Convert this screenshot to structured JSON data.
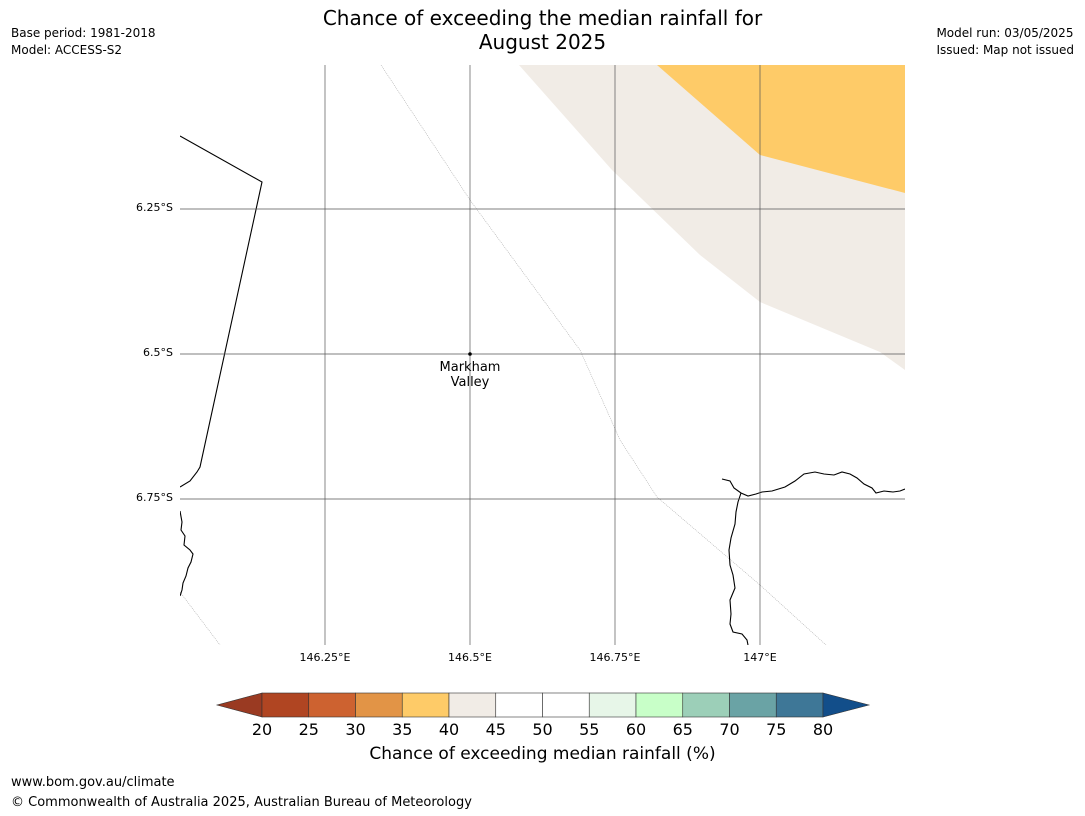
{
  "header": {
    "base_period": "Base period: 1981-2018",
    "model": "Model: ACCESS-S2",
    "model_run": "Model run: 03/05/2025",
    "issued": "Issued: Map not issued",
    "title_line1": "Chance of exceeding the median rainfall for",
    "title_line2": "August 2025"
  },
  "map": {
    "latitudes": [
      {
        "value": -6.25,
        "label": "6.25°S"
      },
      {
        "value": -6.5,
        "label": "6.5°S"
      },
      {
        "value": -6.75,
        "label": "6.75°S"
      }
    ],
    "longitudes": [
      {
        "value": 146.25,
        "label": "146.25°E"
      },
      {
        "value": 146.5,
        "label": "146.5°E"
      },
      {
        "value": 146.75,
        "label": "146.75°E"
      },
      {
        "value": 147.0,
        "label": "147°E"
      }
    ],
    "place": {
      "name_line1": "Markham",
      "name_line2": "Valley",
      "lon": 146.5,
      "lat": -6.5
    },
    "zones": [
      {
        "category": "35-40",
        "color": "#fecb68"
      },
      {
        "category": "40-45",
        "color": "#f1ece6"
      }
    ]
  },
  "colorbar": {
    "label": "Chance of exceeding median rainfall (%)",
    "ticks": [
      "20",
      "25",
      "30",
      "35",
      "40",
      "45",
      "50",
      "55",
      "60",
      "65",
      "70",
      "75",
      "80"
    ],
    "under_color": "#9a3a22",
    "over_color": "#124e8a",
    "colors": [
      "#b04522",
      "#cd6230",
      "#e29446",
      "#fecb68",
      "#f1ece6",
      "#ffffff",
      "#ffffff",
      "#e7f6e8",
      "#c8ffc8",
      "#9ccfb8",
      "#6aa3a5",
      "#3e7797"
    ]
  },
  "footer": {
    "url": "www.bom.gov.au/climate",
    "copyright": "© Commonwealth of Australia 2025, Australian Bureau of Meteorology"
  }
}
